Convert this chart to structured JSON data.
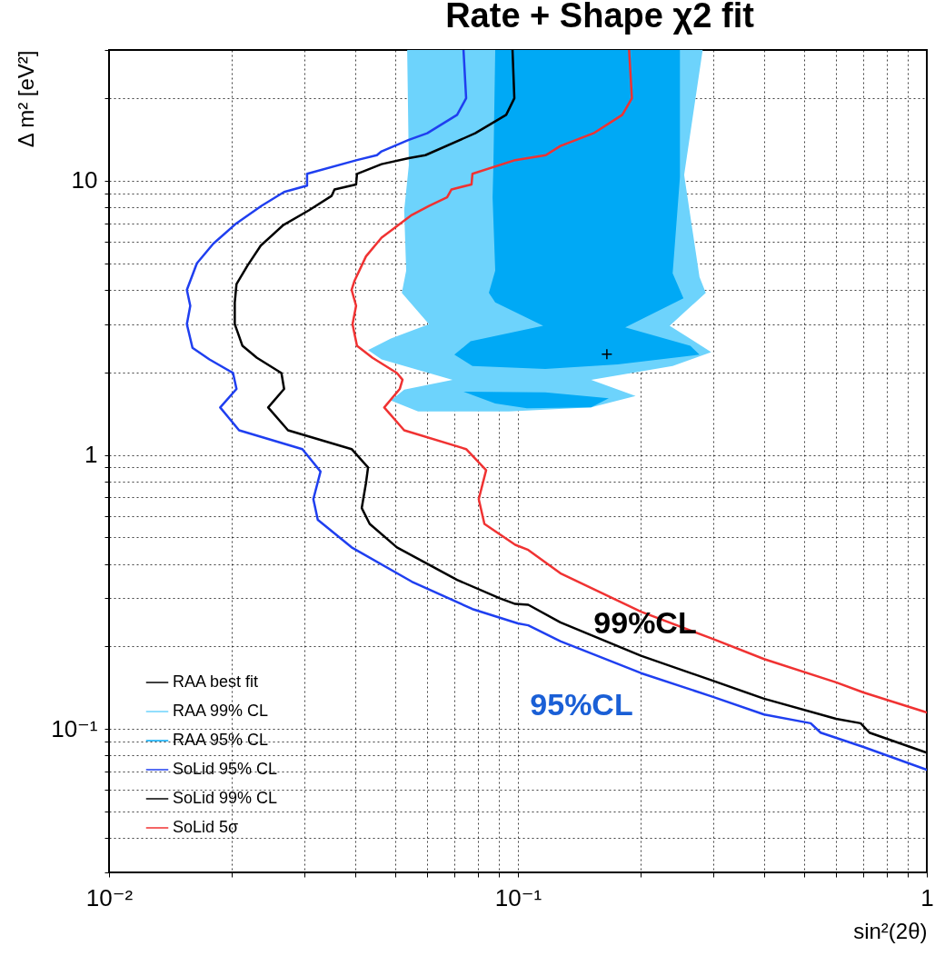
{
  "chart_data": {
    "type": "line",
    "title": "Rate + Shape χ2 fit",
    "xlabel": "sin²(2θ)",
    "ylabel": "Δ m² [eV²]",
    "log": "xy",
    "grid": true,
    "legend": "bottom left",
    "xlim": [
      0.01,
      1
    ],
    "ylim": [
      0.03,
      30
    ],
    "xticks": [
      {
        "value": 0.01,
        "label": "10⁻²"
      },
      {
        "value": 0.02,
        "label": null
      },
      {
        "value": 0.03,
        "label": null
      },
      {
        "value": 0.04,
        "label": null
      },
      {
        "value": 0.05,
        "label": null
      },
      {
        "value": 0.06,
        "label": null
      },
      {
        "value": 0.07,
        "label": null
      },
      {
        "value": 0.08,
        "label": null
      },
      {
        "value": 0.09,
        "label": null
      },
      {
        "value": 0.1,
        "label": "10⁻¹"
      },
      {
        "value": 0.2,
        "label": null
      },
      {
        "value": 0.3,
        "label": null
      },
      {
        "value": 0.4,
        "label": null
      },
      {
        "value": 0.5,
        "label": null
      },
      {
        "value": 0.6,
        "label": null
      },
      {
        "value": 0.7,
        "label": null
      },
      {
        "value": 0.8,
        "label": null
      },
      {
        "value": 0.9,
        "label": null
      },
      1
    ],
    "yticks": [
      {
        "value": 0.03,
        "label": null
      },
      {
        "value": 0.04,
        "label": null
      },
      {
        "value": 0.05,
        "label": null
      },
      {
        "value": 0.06,
        "label": null
      },
      {
        "value": 0.07,
        "label": null
      },
      {
        "value": 0.08,
        "label": null
      },
      {
        "value": 0.09,
        "label": null
      },
      {
        "value": 0.1,
        "label": "10⁻¹"
      },
      {
        "value": 0.2,
        "label": null
      },
      {
        "value": 0.3,
        "label": null
      },
      {
        "value": 0.4,
        "label": null
      },
      {
        "value": 0.5,
        "label": null
      },
      {
        "value": 0.6,
        "label": null
      },
      {
        "value": 0.7,
        "label": null
      },
      {
        "value": 0.8,
        "label": null
      },
      {
        "value": 0.9,
        "label": null
      },
      1,
      {
        "value": 2,
        "label": null
      },
      {
        "value": 3,
        "label": null
      },
      {
        "value": 4,
        "label": null
      },
      {
        "value": 5,
        "label": null
      },
      {
        "value": 6,
        "label": null
      },
      {
        "value": 7,
        "label": null
      },
      {
        "value": 8,
        "label": null
      },
      {
        "value": 9,
        "label": null
      },
      10,
      {
        "value": 20,
        "label": null
      },
      {
        "value": 30,
        "label": null
      }
    ],
    "annotations": [
      "99%CL",
      "95%CL"
    ],
    "series": [
      {
        "name": "RAA best fit",
        "type": "scatter",
        "marker": "cross",
        "color": "#000000",
        "x": [
          0.165
        ],
        "values": [
          2.33
        ]
      },
      {
        "name": "RAA 99% CL",
        "type": "area",
        "color": "#6dd3fc",
        "x": [
          0.0536,
          0.0541,
          0.0527,
          0.0533,
          0.052,
          0.0606,
          0.0489,
          0.043,
          0.0464,
          0.0692,
          0.0527,
          0.0489,
          0.057,
          0.095,
          0.151,
          0.194,
          0.151,
          0.239,
          0.297,
          0.235,
          0.288,
          0.278,
          0.255,
          0.283
        ],
        "values": [
          30,
          11.4,
          7.8,
          4.7,
          3.9,
          3.0,
          2.66,
          2.41,
          2.23,
          1.88,
          1.73,
          1.58,
          1.44,
          1.44,
          1.49,
          1.64,
          1.88,
          2.11,
          2.37,
          2.96,
          3.9,
          4.46,
          10.5,
          30
        ]
      },
      {
        "name": "RAA 95% CL",
        "type": "area",
        "color": "#00a9f5",
        "x": [
          0.088,
          0.0871,
          0.0867,
          0.088,
          0.0849,
          0.088,
          0.1153,
          0.0766,
          0.0699,
          0.0774,
          0.1166,
          0.1754,
          0.278,
          0.264,
          0.183,
          0.254,
          0.239,
          0.249,
          0.249
        ],
        "values": [
          30,
          11.4,
          8.7,
          4.7,
          3.9,
          3.6,
          2.96,
          2.6,
          2.32,
          2.11,
          2.06,
          2.14,
          2.32,
          2.5,
          2.92,
          3.73,
          4.6,
          10.3,
          30
        ]
      },
      {
        "name": "SoLid 95% CL",
        "color": "#1f3ff0",
        "x": [
          0.0736,
          0.0747,
          0.071,
          0.06,
          0.0541,
          0.0464,
          0.0452,
          0.0404,
          0.0305,
          0.0305,
          0.0268,
          0.0236,
          0.0205,
          0.018,
          0.0164,
          0.0155,
          0.0158,
          0.0155,
          0.016,
          0.0176,
          0.0201,
          0.0205,
          0.0187,
          0.0208,
          0.0297,
          0.0329,
          0.0316,
          0.0324,
          0.0392,
          0.055,
          0.0774,
          0.1,
          0.106,
          0.127,
          0.2,
          0.3,
          0.4,
          0.52,
          0.55,
          0.7,
          1
        ],
        "values": [
          30,
          20,
          17.4,
          14.9,
          14.1,
          12.8,
          12.4,
          11.9,
          10.6,
          9.6,
          9.1,
          8.1,
          7.0,
          5.9,
          5.0,
          4.0,
          3.5,
          3.0,
          2.46,
          2.23,
          1.99,
          1.74,
          1.49,
          1.23,
          1.05,
          0.87,
          0.69,
          0.58,
          0.46,
          0.345,
          0.274,
          0.243,
          0.239,
          0.209,
          0.16,
          0.131,
          0.113,
          0.105,
          0.097,
          0.086,
          0.071
        ]
      },
      {
        "name": "SoLid 99% CL",
        "color": "#000000",
        "x": [
          0.097,
          0.098,
          0.0936,
          0.0786,
          0.0594,
          0.0541,
          0.0464,
          0.0404,
          0.0402,
          0.0356,
          0.035,
          0.0308,
          0.0267,
          0.0235,
          0.0218,
          0.0205,
          0.0203,
          0.0203,
          0.0212,
          0.023,
          0.0264,
          0.0268,
          0.0245,
          0.0274,
          0.0392,
          0.043,
          0.0425,
          0.0415,
          0.0434,
          0.0506,
          0.071,
          0.0903,
          0.0985,
          0.106,
          0.127,
          0.2,
          0.3,
          0.4,
          0.6,
          0.689,
          0.724,
          1
        ],
        "values": [
          30,
          20,
          17.4,
          14.9,
          12.4,
          12.1,
          11.5,
          10.6,
          9.7,
          9.3,
          8.8,
          7.8,
          6.9,
          5.8,
          4.9,
          4.2,
          3.6,
          3.0,
          2.5,
          2.26,
          1.99,
          1.74,
          1.49,
          1.23,
          1.05,
          0.9,
          0.79,
          0.64,
          0.56,
          0.46,
          0.35,
          0.3,
          0.286,
          0.284,
          0.245,
          0.185,
          0.15,
          0.129,
          0.109,
          0.105,
          0.097,
          0.082
        ]
      },
      {
        "name": "SoLid 5σ",
        "color": "#f03232",
        "x": [
          0.187,
          0.19,
          0.18,
          0.153,
          0.127,
          0.117,
          0.0985,
          0.0774,
          0.077,
          0.0688,
          0.0671,
          0.0606,
          0.055,
          0.0464,
          0.0425,
          0.0398,
          0.0392,
          0.0402,
          0.0394,
          0.0404,
          0.0441,
          0.0506,
          0.0522,
          0.0514,
          0.0471,
          0.0527,
          0.0747,
          0.0836,
          0.0802,
          0.0828,
          0.0985,
          0.106,
          0.127,
          0.2,
          0.3,
          0.4,
          0.6,
          0.7,
          1
        ],
        "values": [
          30,
          20,
          17.4,
          14.9,
          13.4,
          12.4,
          11.9,
          10.6,
          9.7,
          9.3,
          8.7,
          8.1,
          7.5,
          6.2,
          5.3,
          4.3,
          4.0,
          3.5,
          3.0,
          2.5,
          2.26,
          1.99,
          1.88,
          1.74,
          1.49,
          1.23,
          1.05,
          0.88,
          0.69,
          0.56,
          0.47,
          0.45,
          0.37,
          0.268,
          0.213,
          0.18,
          0.148,
          0.136,
          0.115
        ]
      },
      {
        "type": "area",
        "color": "#00a9f5",
        "x": [
          0.0736,
          0.088,
          0.1052,
          0.151,
          0.1668,
          0.1166
        ],
        "values": [
          1.7,
          1.54,
          1.48,
          1.49,
          1.61,
          1.69
        ]
      }
    ]
  }
}
